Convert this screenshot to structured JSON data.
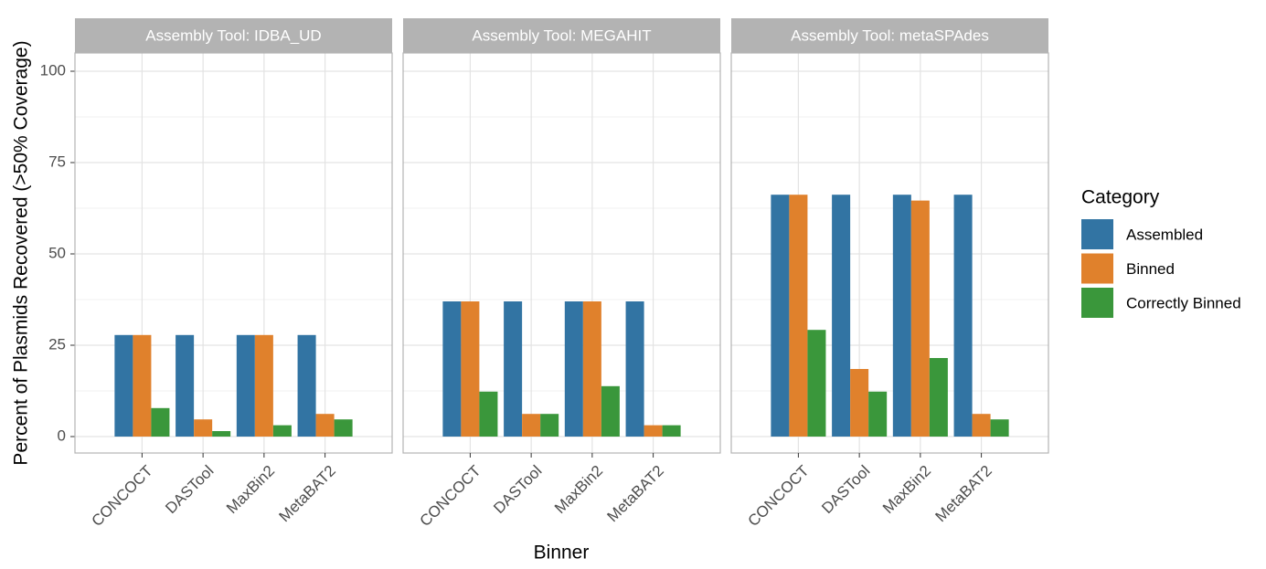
{
  "ylabel": "Percent of Plasmids Recovered (>50% Coverage)",
  "xlabel": "Binner",
  "legend_title": "Category",
  "chart_data": [
    {
      "type": "bar",
      "title": "Assembly Tool: IDBA_UD",
      "categories": [
        "CONCOCT",
        "DASTool",
        "MaxBin2",
        "MetaBAT2"
      ],
      "series": [
        {
          "name": "Assembled",
          "color": "#3274a3",
          "values": [
            27.8,
            27.8,
            27.8,
            27.8
          ]
        },
        {
          "name": "Binned",
          "color": "#e0812c",
          "values": [
            27.8,
            4.7,
            27.8,
            6.2
          ]
        },
        {
          "name": "Correctly Binned",
          "color": "#3a973b",
          "values": [
            7.8,
            1.5,
            3.1,
            4.7
          ]
        }
      ],
      "ylim": [
        -4.5,
        105
      ],
      "yticks": [
        0,
        25,
        50,
        75,
        100
      ],
      "grid": true
    },
    {
      "type": "bar",
      "title": "Assembly Tool: MEGAHIT",
      "categories": [
        "CONCOCT",
        "DASTool",
        "MaxBin2",
        "MetaBAT2"
      ],
      "series": [
        {
          "name": "Assembled",
          "color": "#3274a3",
          "values": [
            37,
            37,
            37,
            37
          ]
        },
        {
          "name": "Binned",
          "color": "#e0812c",
          "values": [
            37,
            6.2,
            37,
            3.1
          ]
        },
        {
          "name": "Correctly Binned",
          "color": "#3a973b",
          "values": [
            12.3,
            6.2,
            13.8,
            3.1
          ]
        }
      ],
      "ylim": [
        -4.5,
        105
      ],
      "yticks": [
        0,
        25,
        50,
        75,
        100
      ],
      "grid": true
    },
    {
      "type": "bar",
      "title": "Assembly Tool: metaSPAdes",
      "categories": [
        "CONCOCT",
        "DASTool",
        "MaxBin2",
        "MetaBAT2"
      ],
      "series": [
        {
          "name": "Assembled",
          "color": "#3274a3",
          "values": [
            66.2,
            66.2,
            66.2,
            66.2
          ]
        },
        {
          "name": "Binned",
          "color": "#e0812c",
          "values": [
            66.2,
            18.5,
            64.6,
            6.2
          ]
        },
        {
          "name": "Correctly Binned",
          "color": "#3a973b",
          "values": [
            29.2,
            12.3,
            21.5,
            4.7
          ]
        }
      ],
      "ylim": [
        -4.5,
        105
      ],
      "yticks": [
        0,
        25,
        50,
        75,
        100
      ],
      "grid": true
    }
  ]
}
